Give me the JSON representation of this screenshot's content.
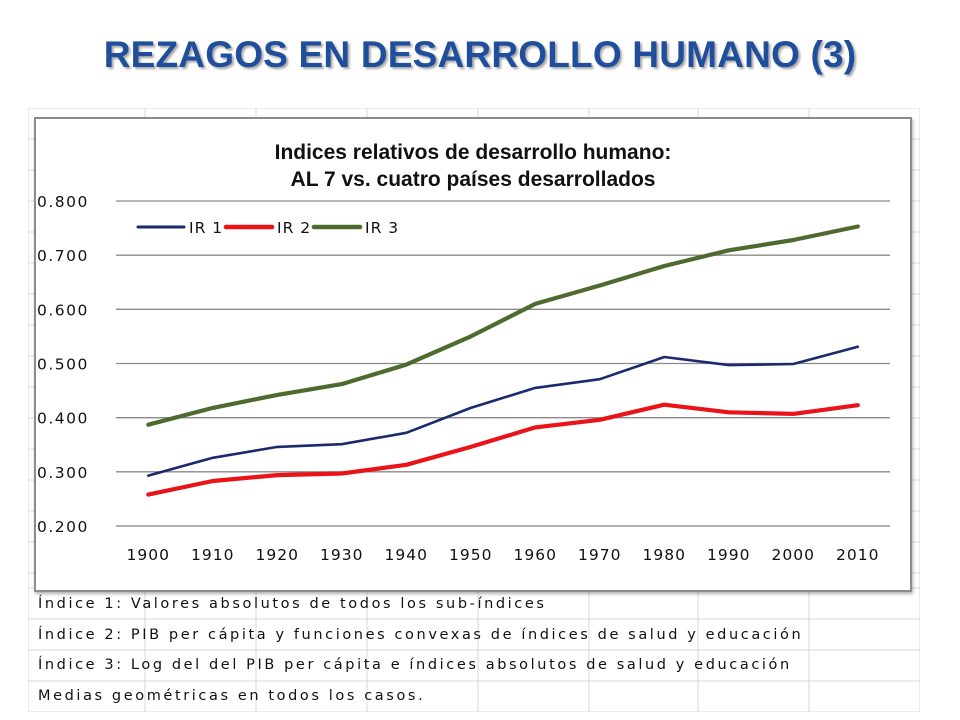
{
  "slide": {
    "title": "REZAGOS EN DESARROLLO HUMANO (3)"
  },
  "chart_data": {
    "type": "line",
    "title": "Indices relativos de desarrollo humano:",
    "subtitle": "AL 7 vs. cuatro países desarrollados",
    "xlabel": "",
    "ylabel": "",
    "x": [
      1900,
      1910,
      1920,
      1930,
      1940,
      1950,
      1960,
      1970,
      1980,
      1990,
      2000,
      2010
    ],
    "x_tick_labels": [
      "1900",
      "1910",
      "1920",
      "1930",
      "1940",
      "1950",
      "1960",
      "1970",
      "1980",
      "1990",
      "2000",
      "2010"
    ],
    "ylim": [
      0.2,
      0.8
    ],
    "y_ticks": [
      0.2,
      0.3,
      0.4,
      0.5,
      0.6,
      0.7,
      0.8
    ],
    "y_tick_labels": [
      "0.200",
      "0.300",
      "0.400",
      "0.500",
      "0.600",
      "0.700",
      "0.800"
    ],
    "grid": true,
    "legend_position": "top-left",
    "series": [
      {
        "name": "IR 1",
        "color": "#1a2a6c",
        "values": [
          0.293,
          0.326,
          0.346,
          0.351,
          0.372,
          0.418,
          0.455,
          0.471,
          0.512,
          0.497,
          0.499,
          0.531
        ]
      },
      {
        "name": "IR 2",
        "color": "#e8141a",
        "values": [
          0.258,
          0.283,
          0.294,
          0.297,
          0.313,
          0.346,
          0.382,
          0.396,
          0.424,
          0.41,
          0.407,
          0.423
        ]
      },
      {
        "name": "IR 3",
        "color": "#4e6a2e",
        "values": [
          0.387,
          0.418,
          0.442,
          0.462,
          0.498,
          0.55,
          0.61,
          0.644,
          0.68,
          0.709,
          0.728,
          0.753
        ]
      }
    ]
  },
  "notes": [
    "Índice 1: Valores absolutos de todos los sub-índices",
    "Índice 2: PIB per cápita y funciones convexas de índices de salud y educación",
    "Índice 3: Log del del PIB per cápita e  índices absolutos de salud y educación",
    "Medias geométricas en todos los casos."
  ]
}
